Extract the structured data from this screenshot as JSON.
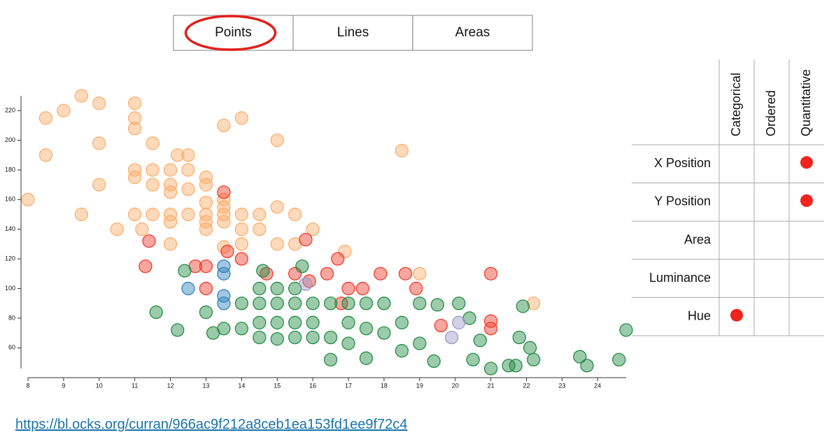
{
  "tabs": [
    "Points",
    "Lines",
    "Areas"
  ],
  "selected_tab": 0,
  "chart_data": {
    "type": "scatter",
    "xlim": [
      8,
      24.8
    ],
    "xticks": [
      8,
      9,
      10,
      11,
      12,
      13,
      14,
      15,
      16,
      17,
      18,
      19,
      20,
      21,
      22,
      23,
      24
    ],
    "ylim": [
      46,
      230
    ],
    "yticks": [
      60,
      80,
      100,
      120,
      140,
      160,
      180,
      200,
      220
    ],
    "series": [
      {
        "color": "#fdae6b",
        "x": [
          8,
          8.5,
          8.5,
          9,
          9.5,
          9.5,
          10,
          10,
          10,
          10.5,
          11,
          11,
          11,
          11,
          11,
          11,
          11.2,
          11.5,
          11.5,
          11.5,
          11.5,
          12,
          12,
          12,
          12,
          12,
          12,
          12.2,
          12.5,
          12.5,
          12.5,
          12.5,
          13,
          13,
          13,
          13,
          13,
          13,
          13.5,
          13.5,
          13.5,
          13.5,
          13.5,
          13.5,
          14,
          14,
          14,
          14,
          14.5,
          14.5,
          15,
          15,
          15,
          15.5,
          15.5,
          16,
          16.9,
          18.5,
          19,
          22.2
        ],
        "values": [
          160,
          215,
          190,
          220,
          230,
          150,
          225,
          198,
          170,
          140,
          225,
          215,
          208,
          180,
          175,
          150,
          140,
          198,
          180,
          170,
          150,
          180,
          170,
          165,
          150,
          145,
          130,
          190,
          190,
          180,
          167,
          150,
          175,
          170,
          158,
          150,
          145,
          140,
          210,
          160,
          155,
          150,
          145,
          128,
          215,
          150,
          140,
          130,
          150,
          140,
          200,
          155,
          130,
          150,
          130,
          140,
          125,
          193,
          110,
          90
        ]
      },
      {
        "color": "#ef3b2c",
        "x": [
          13.5,
          11.4,
          11.3,
          12.7,
          13,
          13,
          13.6,
          14,
          15.8,
          16.7,
          14.7,
          15.5,
          15.9,
          16.4,
          17,
          17.9,
          18.6,
          18.9,
          21,
          21,
          21,
          19.6,
          16.8,
          17.4
        ],
        "values": [
          165,
          132,
          115,
          115,
          115,
          100,
          125,
          120,
          133,
          120,
          110,
          110,
          105,
          110,
          100,
          110,
          110,
          100,
          110,
          78,
          73,
          75,
          90,
          100
        ]
      },
      {
        "color": "#238b45",
        "x": [
          11.6,
          12.2,
          13,
          13.2,
          13.5,
          14,
          14,
          14.5,
          14.5,
          14.5,
          14.5,
          15,
          15,
          15,
          15,
          15.5,
          15.5,
          15.5,
          15.5,
          16,
          16,
          16,
          16.5,
          16.5,
          16.5,
          17,
          17,
          17,
          17.5,
          17.5,
          17.5,
          18,
          18,
          18.5,
          18.5,
          19,
          19,
          19.5,
          19.4,
          20.1,
          20.4,
          20.5,
          20.7,
          21,
          21.5,
          21.7,
          21.8,
          21.9,
          22.1,
          22.2,
          23.5,
          23.7,
          24.6,
          24.8,
          14.6,
          15.7,
          12.4
        ],
        "values": [
          84,
          72,
          84,
          70,
          73,
          90,
          73,
          100,
          90,
          77,
          67,
          100,
          90,
          77,
          66,
          100,
          90,
          77,
          67,
          90,
          77,
          67,
          90,
          67,
          52,
          90,
          77,
          63,
          90,
          73,
          53,
          90,
          70,
          77,
          58,
          90,
          63,
          89,
          51,
          90,
          80,
          52,
          65,
          46,
          48,
          48,
          67,
          88,
          60,
          52,
          54,
          48,
          52,
          72,
          112,
          115,
          112
        ]
      },
      {
        "color": "#3182bd",
        "x": [
          12.5,
          13.5,
          13.5,
          13.5,
          13.5
        ],
        "values": [
          100,
          110,
          95,
          90,
          115
        ]
      },
      {
        "color": "#9e9ac8",
        "x": [
          20.1,
          19.9,
          15.8
        ],
        "values": [
          77,
          67,
          103
        ]
      }
    ]
  },
  "table": {
    "columns": [
      "Categorical",
      "Ordered",
      "Quantitative"
    ],
    "rows": [
      {
        "label": "X Position",
        "cells": [
          false,
          false,
          true
        ]
      },
      {
        "label": "Y Position",
        "cells": [
          false,
          false,
          true
        ]
      },
      {
        "label": "Area",
        "cells": [
          false,
          false,
          false
        ]
      },
      {
        "label": "Luminance",
        "cells": [
          false,
          false,
          false
        ]
      },
      {
        "label": "Hue",
        "cells": [
          true,
          false,
          false
        ]
      }
    ]
  },
  "link": "https://bl.ocks.org/curran/966ac9f212a8ceb1ea153fd1ee9f72c4"
}
